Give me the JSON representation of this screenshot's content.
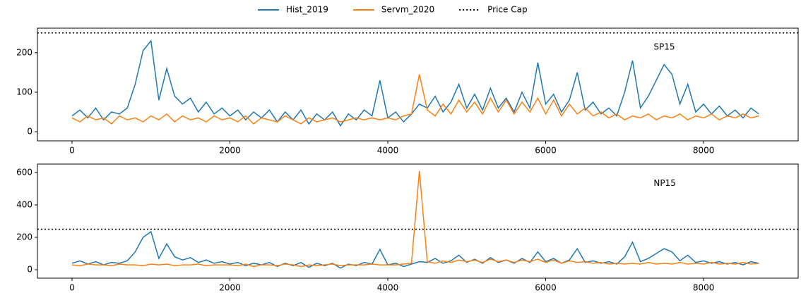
{
  "chart_data": [
    {
      "type": "line",
      "annotation": "SP15",
      "x": [
        0,
        100,
        200,
        300,
        400,
        500,
        600,
        700,
        800,
        900,
        1000,
        1100,
        1200,
        1300,
        1400,
        1500,
        1600,
        1700,
        1800,
        1900,
        2000,
        2100,
        2200,
        2300,
        2400,
        2500,
        2600,
        2700,
        2800,
        2900,
        3000,
        3100,
        3200,
        3300,
        3400,
        3500,
        3600,
        3700,
        3800,
        3900,
        4000,
        4100,
        4200,
        4300,
        4400,
        4500,
        4600,
        4700,
        4800,
        4900,
        5000,
        5100,
        5200,
        5300,
        5400,
        5500,
        5600,
        5700,
        5800,
        5900,
        6000,
        6100,
        6200,
        6300,
        6400,
        6500,
        6600,
        6700,
        6800,
        6900,
        7000,
        7100,
        7200,
        7300,
        7400,
        7500,
        7600,
        7700,
        7800,
        7900,
        8000,
        8100,
        8200,
        8300,
        8400,
        8500,
        8600,
        8700
      ],
      "series": [
        {
          "name": "Hist_2019",
          "color": "#1f77b4",
          "values": [
            40,
            55,
            35,
            60,
            30,
            50,
            45,
            60,
            120,
            205,
            230,
            80,
            160,
            90,
            70,
            85,
            50,
            75,
            45,
            60,
            40,
            55,
            30,
            50,
            35,
            55,
            25,
            50,
            30,
            55,
            20,
            45,
            30,
            50,
            15,
            45,
            30,
            55,
            40,
            130,
            35,
            50,
            25,
            45,
            70,
            60,
            90,
            50,
            75,
            120,
            60,
            95,
            55,
            110,
            60,
            85,
            50,
            100,
            60,
            175,
            70,
            95,
            50,
            80,
            150,
            55,
            75,
            45,
            60,
            40,
            100,
            180,
            60,
            90,
            130,
            170,
            145,
            70,
            120,
            50,
            70,
            45,
            65,
            40,
            55,
            35,
            60,
            45
          ]
        },
        {
          "name": "Servm_2020",
          "color": "#ff7f0e",
          "values": [
            35,
            25,
            40,
            30,
            35,
            20,
            40,
            30,
            35,
            25,
            40,
            30,
            45,
            25,
            40,
            30,
            35,
            25,
            40,
            30,
            35,
            25,
            40,
            20,
            35,
            30,
            25,
            40,
            30,
            20,
            35,
            25,
            30,
            35,
            25,
            30,
            35,
            30,
            35,
            30,
            35,
            30,
            40,
            45,
            145,
            55,
            40,
            70,
            45,
            80,
            50,
            75,
            45,
            85,
            50,
            80,
            45,
            75,
            50,
            85,
            45,
            80,
            40,
            70,
            45,
            60,
            40,
            50,
            35,
            45,
            30,
            40,
            35,
            45,
            30,
            40,
            35,
            45,
            30,
            40,
            35,
            45,
            30,
            40,
            35,
            45,
            35,
            40
          ]
        }
      ],
      "hline": {
        "name": "Price Cap",
        "value": 250,
        "color": "#000000"
      },
      "xlim": [
        -438,
        9198
      ],
      "xticks": [
        0,
        2000,
        4000,
        6000,
        8000
      ],
      "ylim": [
        -23,
        262
      ],
      "yticks": [
        0,
        100,
        200
      ]
    },
    {
      "type": "line",
      "annotation": "NP15",
      "x": [
        0,
        100,
        200,
        300,
        400,
        500,
        600,
        700,
        800,
        900,
        1000,
        1100,
        1200,
        1300,
        1400,
        1500,
        1600,
        1700,
        1800,
        1900,
        2000,
        2100,
        2200,
        2300,
        2400,
        2500,
        2600,
        2700,
        2800,
        2900,
        3000,
        3100,
        3200,
        3300,
        3400,
        3500,
        3600,
        3700,
        3800,
        3900,
        4000,
        4100,
        4200,
        4300,
        4400,
        4500,
        4600,
        4700,
        4800,
        4900,
        5000,
        5100,
        5200,
        5300,
        5400,
        5500,
        5600,
        5700,
        5800,
        5900,
        6000,
        6100,
        6200,
        6300,
        6400,
        6500,
        6600,
        6700,
        6800,
        6900,
        7000,
        7100,
        7200,
        7300,
        7400,
        7500,
        7600,
        7700,
        7800,
        7900,
        8000,
        8100,
        8200,
        8300,
        8400,
        8500,
        8600,
        8700
      ],
      "series": [
        {
          "color": "#1f77b4",
          "values": [
            40,
            55,
            35,
            50,
            30,
            45,
            40,
            55,
            110,
            200,
            235,
            70,
            160,
            80,
            60,
            75,
            45,
            60,
            40,
            50,
            35,
            45,
            25,
            40,
            30,
            45,
            20,
            40,
            25,
            45,
            15,
            40,
            25,
            40,
            10,
            35,
            25,
            45,
            35,
            125,
            30,
            40,
            20,
            35,
            50,
            45,
            70,
            40,
            55,
            90,
            45,
            65,
            40,
            75,
            45,
            60,
            40,
            70,
            45,
            110,
            50,
            70,
            40,
            60,
            130,
            45,
            55,
            40,
            50,
            35,
            80,
            170,
            50,
            70,
            100,
            130,
            110,
            55,
            90,
            45,
            55,
            40,
            50,
            35,
            45,
            30,
            50,
            40
          ]
        },
        {
          "color": "#ff7f0e",
          "values": [
            30,
            25,
            35,
            30,
            30,
            25,
            35,
            30,
            30,
            25,
            35,
            30,
            35,
            25,
            30,
            30,
            35,
            25,
            30,
            30,
            30,
            25,
            35,
            20,
            30,
            30,
            25,
            35,
            30,
            20,
            30,
            25,
            30,
            35,
            25,
            30,
            30,
            30,
            35,
            30,
            30,
            30,
            35,
            40,
            610,
            50,
            40,
            55,
            45,
            60,
            50,
            60,
            45,
            65,
            50,
            60,
            45,
            60,
            50,
            65,
            45,
            60,
            40,
            55,
            45,
            50,
            40,
            45,
            35,
            40,
            35,
            40,
            35,
            45,
            35,
            40,
            35,
            45,
            35,
            40,
            35,
            45,
            35,
            40,
            35,
            45,
            35,
            40
          ]
        }
      ],
      "hline": {
        "value": 250,
        "color": "#000000"
      },
      "xlim": [
        -438,
        9198
      ],
      "xticks": [
        0,
        2000,
        4000,
        6000,
        8000
      ],
      "ylim": [
        -52,
        652
      ],
      "yticks": [
        0,
        200,
        400,
        600
      ]
    }
  ]
}
